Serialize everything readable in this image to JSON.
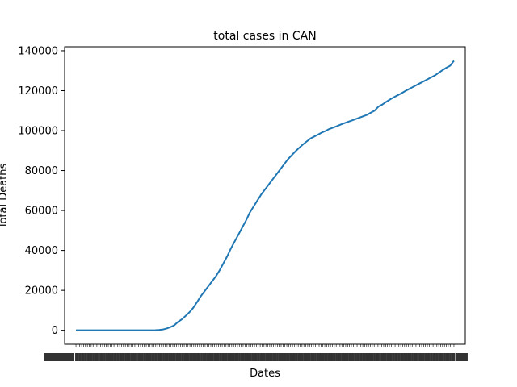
{
  "chart_data": {
    "type": "line",
    "title": "total cases in CAN",
    "xlabel": "Dates",
    "ylabel": "Total Deaths",
    "ylim": [
      -7000,
      142000
    ],
    "y_ticks": [
      0,
      20000,
      40000,
      60000,
      80000,
      100000,
      120000,
      140000
    ],
    "y_tick_labels": [
      "0",
      "20000",
      "40000",
      "60000",
      "80000",
      "100000",
      "120000",
      "140000"
    ],
    "x_tick_count": 200,
    "x_tick_labels_note": "dense overlapping date labels, unreadable",
    "grid": false,
    "legend": "none",
    "series": [
      {
        "color": "#1f77b4",
        "points": [
          [
            0,
            0
          ],
          [
            30,
            0
          ],
          [
            60,
            0
          ],
          [
            90,
            0
          ],
          [
            100,
            0
          ],
          [
            105,
            50
          ],
          [
            110,
            150
          ],
          [
            115,
            400
          ],
          [
            120,
            900
          ],
          [
            125,
            1600
          ],
          [
            130,
            2500
          ],
          [
            135,
            4200
          ],
          [
            140,
            5500
          ],
          [
            145,
            7200
          ],
          [
            150,
            9000
          ],
          [
            155,
            11200
          ],
          [
            160,
            14000
          ],
          [
            165,
            17000
          ],
          [
            170,
            19500
          ],
          [
            175,
            22000
          ],
          [
            180,
            24500
          ],
          [
            185,
            27000
          ],
          [
            190,
            30000
          ],
          [
            195,
            33500
          ],
          [
            200,
            37000
          ],
          [
            205,
            41000
          ],
          [
            210,
            44500
          ],
          [
            215,
            48000
          ],
          [
            220,
            51500
          ],
          [
            225,
            55000
          ],
          [
            230,
            59000
          ],
          [
            235,
            62000
          ],
          [
            240,
            65000
          ],
          [
            245,
            68000
          ],
          [
            250,
            70500
          ],
          [
            255,
            73000
          ],
          [
            260,
            75500
          ],
          [
            265,
            78000
          ],
          [
            270,
            80500
          ],
          [
            275,
            83000
          ],
          [
            280,
            85500
          ],
          [
            285,
            87500
          ],
          [
            290,
            89500
          ],
          [
            295,
            91300
          ],
          [
            300,
            93000
          ],
          [
            305,
            94500
          ],
          [
            310,
            96000
          ],
          [
            315,
            97000
          ],
          [
            320,
            98000
          ],
          [
            325,
            99000
          ],
          [
            330,
            99800
          ],
          [
            335,
            100800
          ],
          [
            340,
            101500
          ],
          [
            345,
            102200
          ],
          [
            350,
            103000
          ],
          [
            355,
            103700
          ],
          [
            360,
            104400
          ],
          [
            365,
            105100
          ],
          [
            370,
            105800
          ],
          [
            375,
            106500
          ],
          [
            380,
            107200
          ],
          [
            385,
            107900
          ],
          [
            390,
            109000
          ],
          [
            395,
            110000
          ],
          [
            400,
            112000
          ],
          [
            405,
            113000
          ],
          [
            410,
            114300
          ],
          [
            415,
            115500
          ],
          [
            420,
            116600
          ],
          [
            425,
            117600
          ],
          [
            430,
            118600
          ],
          [
            435,
            119700
          ],
          [
            440,
            120700
          ],
          [
            445,
            121700
          ],
          [
            450,
            122700
          ],
          [
            455,
            123700
          ],
          [
            460,
            124700
          ],
          [
            465,
            125700
          ],
          [
            470,
            126700
          ],
          [
            475,
            127700
          ],
          [
            480,
            129000
          ],
          [
            485,
            130300
          ],
          [
            490,
            131500
          ],
          [
            495,
            132500
          ],
          [
            498,
            134000
          ],
          [
            500,
            135000
          ]
        ]
      }
    ]
  }
}
